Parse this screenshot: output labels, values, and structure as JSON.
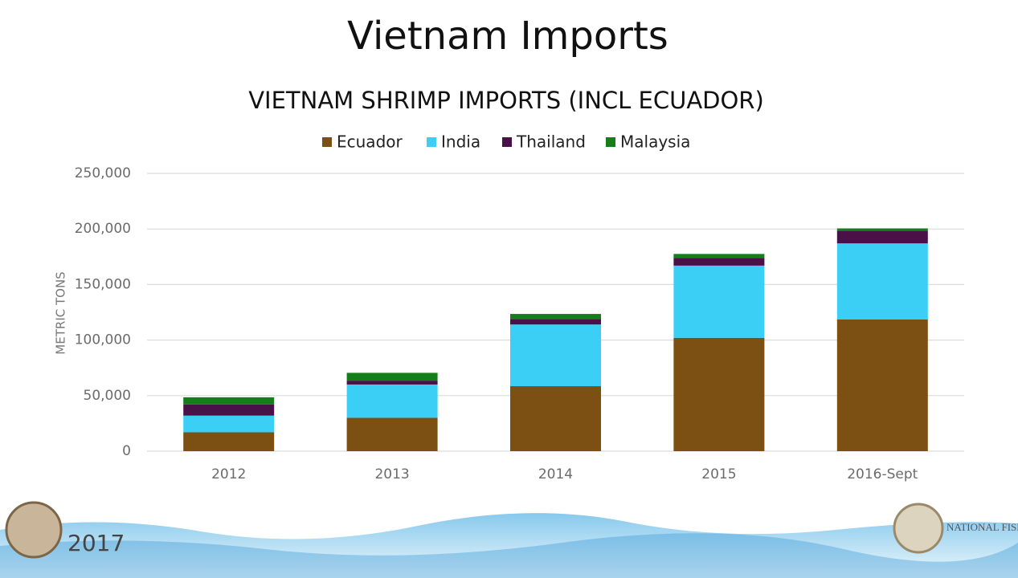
{
  "slide_title": "Vietnam Imports",
  "footer": {
    "year": "2017",
    "logo_text": "NATIONAL FISHERIES INSTITUTE"
  },
  "chart_data": {
    "type": "stacked_bar",
    "title": "VIETNAM SHRIMP IMPORTS (INCL ECUADOR)",
    "y_label": "METRIC TONS",
    "categories": [
      "2012",
      "2013",
      "2014",
      "2015",
      "2016-Sept"
    ],
    "series": [
      {
        "name": "Ecuador",
        "color": "#7b5012",
        "values": [
          17000,
          30000,
          58500,
          102000,
          118500
        ]
      },
      {
        "name": "India",
        "color": "#3ccff5",
        "values": [
          15000,
          30000,
          55500,
          65000,
          68500
        ]
      },
      {
        "name": "Thailand",
        "color": "#4a1048",
        "values": [
          10000,
          3500,
          5000,
          7000,
          11500
        ]
      },
      {
        "name": "Malaysia",
        "color": "#147f1a",
        "values": [
          6500,
          7000,
          4500,
          3500,
          2000
        ]
      }
    ],
    "ylim": [
      0,
      250000
    ],
    "yticks": [
      0,
      {
        "value": 50000,
        "label": "50,000"
      },
      {
        "value": 100000,
        "label": "100,000"
      },
      {
        "value": 150000,
        "label": "150,000"
      },
      {
        "value": 200000,
        "label": "200,000"
      },
      {
        "value": 250000,
        "label": "250,000"
      }
    ],
    "grid": true,
    "legend": "top"
  }
}
